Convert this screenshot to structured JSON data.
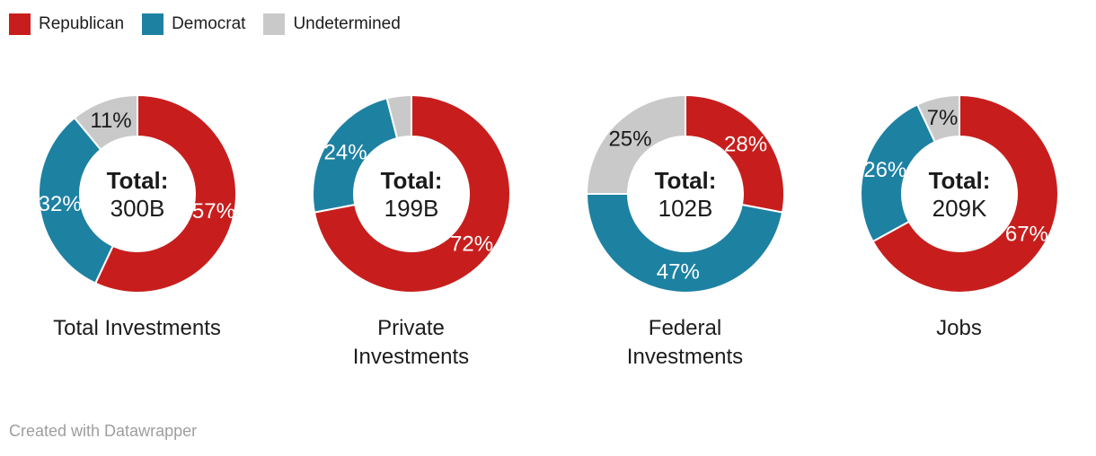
{
  "legend": {
    "items": [
      {
        "label": "Republican",
        "color": "#c71e1d"
      },
      {
        "label": "Democrat",
        "color": "#1d81a2"
      },
      {
        "label": "Undetermined",
        "color": "#c9c9c9"
      }
    ]
  },
  "colors": {
    "Republican": "#c71e1d",
    "Democrat": "#1d81a2",
    "Undetermined": "#c9c9c9",
    "label_on_dark": "#ffffff",
    "label_on_light": "#1a1a1a",
    "text": "#1a1a1a",
    "footer": "#9e9e9e"
  },
  "chart_data": [
    {
      "type": "pie",
      "variant": "donut",
      "title": "Total Investments",
      "title_lines": [
        "Total Investments"
      ],
      "center": {
        "label": "Total:",
        "value": "300B"
      },
      "slices": [
        {
          "name": "Republican",
          "pct": 57,
          "label": "57%"
        },
        {
          "name": "Democrat",
          "pct": 32,
          "label": "32%"
        },
        {
          "name": "Undetermined",
          "pct": 11,
          "label": "11%"
        }
      ]
    },
    {
      "type": "pie",
      "variant": "donut",
      "title": "Private Investments",
      "title_lines": [
        "Private",
        "Investments"
      ],
      "center": {
        "label": "Total:",
        "value": "199B"
      },
      "slices": [
        {
          "name": "Republican",
          "pct": 72,
          "label": "72%"
        },
        {
          "name": "Democrat",
          "pct": 24,
          "label": "24%"
        },
        {
          "name": "Undetermined",
          "pct": 4,
          "label": ""
        }
      ]
    },
    {
      "type": "pie",
      "variant": "donut",
      "title": "Federal Investments",
      "title_lines": [
        "Federal",
        "Investments"
      ],
      "center": {
        "label": "Total:",
        "value": "102B"
      },
      "slices": [
        {
          "name": "Republican",
          "pct": 28,
          "label": "28%"
        },
        {
          "name": "Democrat",
          "pct": 47,
          "label": "47%"
        },
        {
          "name": "Undetermined",
          "pct": 25,
          "label": "25%"
        }
      ]
    },
    {
      "type": "pie",
      "variant": "donut",
      "title": "Jobs",
      "title_lines": [
        "Jobs"
      ],
      "center": {
        "label": "Total:",
        "value": "209K"
      },
      "slices": [
        {
          "name": "Republican",
          "pct": 67,
          "label": "67%"
        },
        {
          "name": "Democrat",
          "pct": 26,
          "label": "26%"
        },
        {
          "name": "Undetermined",
          "pct": 7,
          "label": "7%"
        }
      ]
    }
  ],
  "footer": {
    "text": "Created with Datawrapper"
  }
}
